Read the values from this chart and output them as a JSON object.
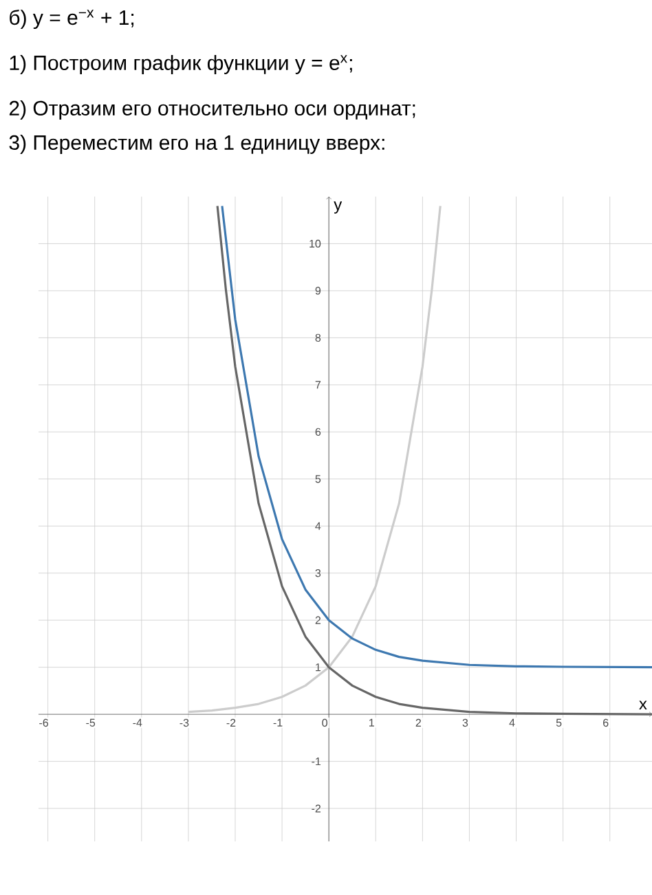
{
  "chart_data": {
    "type": "line",
    "title": "б) y = e$^{−x}$ + 1;",
    "annotations": [
      "1) Построим график функции y = e$^{x}$;",
      "2) Отразим его относительно оси ординат;",
      "3) Переместим его на 1 единицу вверх:"
    ],
    "xlabel": "x",
    "ylabel": "y",
    "xlim": [
      -6.2,
      6.9
    ],
    "ylim": [
      -2.7,
      11
    ],
    "xticks": [
      -6,
      -5,
      -4,
      -3,
      -2,
      -1,
      0,
      1,
      2,
      3,
      4,
      5,
      6
    ],
    "yticks": [
      -2,
      -1,
      1,
      2,
      3,
      4,
      5,
      6,
      7,
      8,
      9,
      10
    ],
    "grid": true,
    "series": [
      {
        "color": "#cccccc",
        "x": [
          -3,
          -2.5,
          -2,
          -1.5,
          -1,
          -0.5,
          0,
          0.5,
          1,
          1.5,
          2,
          2.2,
          2.38
        ],
        "values": [
          0.05,
          0.08,
          0.14,
          0.22,
          0.37,
          0.61,
          1,
          1.65,
          2.72,
          4.48,
          7.39,
          9.03,
          10.8
        ]
      },
      {
        "color": "#666666",
        "x": [
          -2.38,
          -2.2,
          -2,
          -1.5,
          -1,
          -0.5,
          0,
          0.5,
          1,
          1.5,
          2,
          3,
          4,
          5,
          6.9
        ],
        "values": [
          10.8,
          9.03,
          7.39,
          4.48,
          2.72,
          1.65,
          1,
          0.61,
          0.37,
          0.22,
          0.14,
          0.05,
          0.02,
          0.01,
          0
        ]
      },
      {
        "color": "#3d78b0",
        "x": [
          -2.28,
          -2,
          -1.5,
          -1,
          -0.5,
          0,
          0.5,
          1,
          1.5,
          2,
          3,
          4,
          5,
          6.9
        ],
        "values": [
          10.8,
          8.39,
          5.48,
          3.72,
          2.65,
          2,
          1.61,
          1.37,
          1.22,
          1.14,
          1.05,
          1.02,
          1.01,
          1
        ]
      }
    ]
  }
}
